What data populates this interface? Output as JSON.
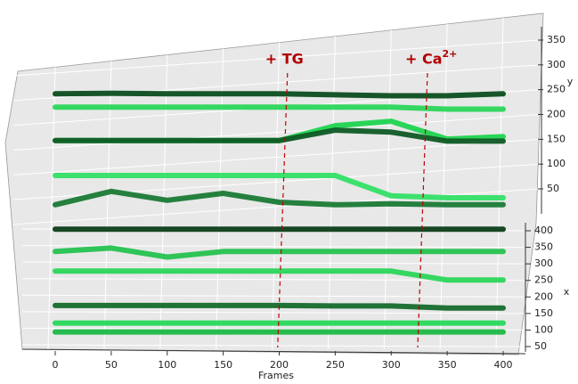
{
  "chart_data": {
    "type": "line3d",
    "xlabel": "Frames",
    "depth_label": "x",
    "zlabel": "y",
    "xlim": [
      0,
      400
    ],
    "xticks": [
      0,
      50,
      100,
      150,
      200,
      250,
      300,
      350,
      400
    ],
    "depth_lim": [
      50,
      400
    ],
    "depth_ticks": [
      50,
      100,
      150,
      200,
      250,
      300,
      350,
      400
    ],
    "zlim": [
      50,
      350
    ],
    "zticks": [
      50,
      100,
      150,
      200,
      250,
      300,
      350
    ],
    "grid": true,
    "annotations": [
      {
        "text": "+ TG",
        "frame": 205
      },
      {
        "text": "+ Ca",
        "sup": "2+",
        "frame": 330
      }
    ],
    "x": [
      0,
      50,
      100,
      150,
      200,
      250,
      300,
      350,
      400
    ],
    "series": [
      {
        "color": "#0b4d1e",
        "depth": 400,
        "values": [
          301,
          302,
          301,
          301,
          301,
          299,
          297,
          297,
          301
        ]
      },
      {
        "color": "#2bd65a",
        "depth": 400,
        "values": [
          274,
          274,
          274,
          274,
          274,
          274,
          274,
          270,
          270
        ]
      },
      {
        "color": "#1fd44f",
        "depth": 350,
        "values": [
          240,
          240,
          240,
          240,
          240,
          270,
          279,
          243,
          248
        ]
      },
      {
        "color": "#0f5a25",
        "depth": 350,
        "values": [
          240,
          240,
          240,
          240,
          240,
          261,
          257,
          239,
          239
        ]
      },
      {
        "color": "#33e066",
        "depth": 300,
        "values": [
          203,
          203,
          203,
          203,
          203,
          203,
          162,
          158,
          158
        ]
      },
      {
        "color": "#1a7a35",
        "depth": 300,
        "values": [
          144,
          171,
          153,
          167,
          149,
          144,
          146,
          144,
          144
        ]
      },
      {
        "color": "#0d3d18",
        "depth": 250,
        "values": [
          128,
          128,
          128,
          128,
          128,
          128,
          128,
          128,
          128
        ]
      },
      {
        "color": "#25c24f",
        "depth": 250,
        "values": [
          83,
          90,
          72,
          83,
          83,
          83,
          83,
          83,
          83
        ]
      },
      {
        "color": "#2bd65a",
        "depth": 200,
        "values": [
          77,
          77,
          77,
          77,
          77,
          77,
          77,
          59,
          59
        ]
      },
      {
        "color": "#156b2c",
        "depth": 150,
        "values": [
          41,
          41,
          41,
          41,
          41,
          40,
          40,
          36,
          36
        ]
      },
      {
        "color": "#26d858",
        "depth": 100,
        "values": [
          39,
          39,
          39,
          39,
          39,
          39,
          39,
          39,
          39
        ]
      },
      {
        "color": "#1cb846",
        "depth": 100,
        "values": [
          21,
          21,
          21,
          21,
          21,
          21,
          21,
          21,
          21
        ]
      }
    ]
  }
}
